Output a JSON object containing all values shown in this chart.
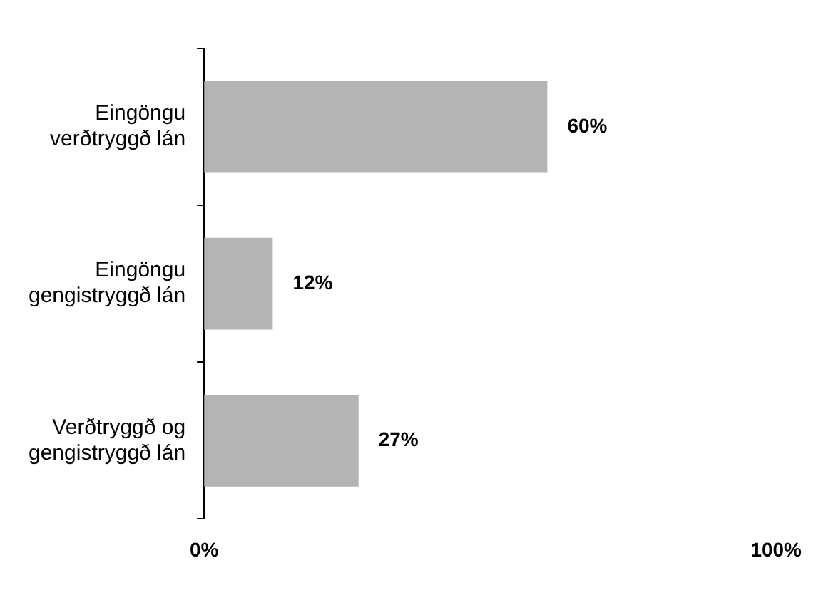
{
  "chart_data": {
    "type": "bar",
    "orientation": "horizontal",
    "categories": [
      "Eingöngu verðtryggð lán",
      "Eingöngu gengistryggð lán",
      "Verðtryggð og gengistryggð lán"
    ],
    "values": [
      60,
      12,
      27
    ],
    "value_labels": [
      "60%",
      "12%",
      "27%"
    ],
    "color": "#b4b4b4",
    "xlim": [
      0,
      100
    ],
    "xticks": [
      {
        "value": 0,
        "label": "0%"
      },
      {
        "value": 100,
        "label": "100%"
      }
    ],
    "grid": false,
    "legend": false
  }
}
